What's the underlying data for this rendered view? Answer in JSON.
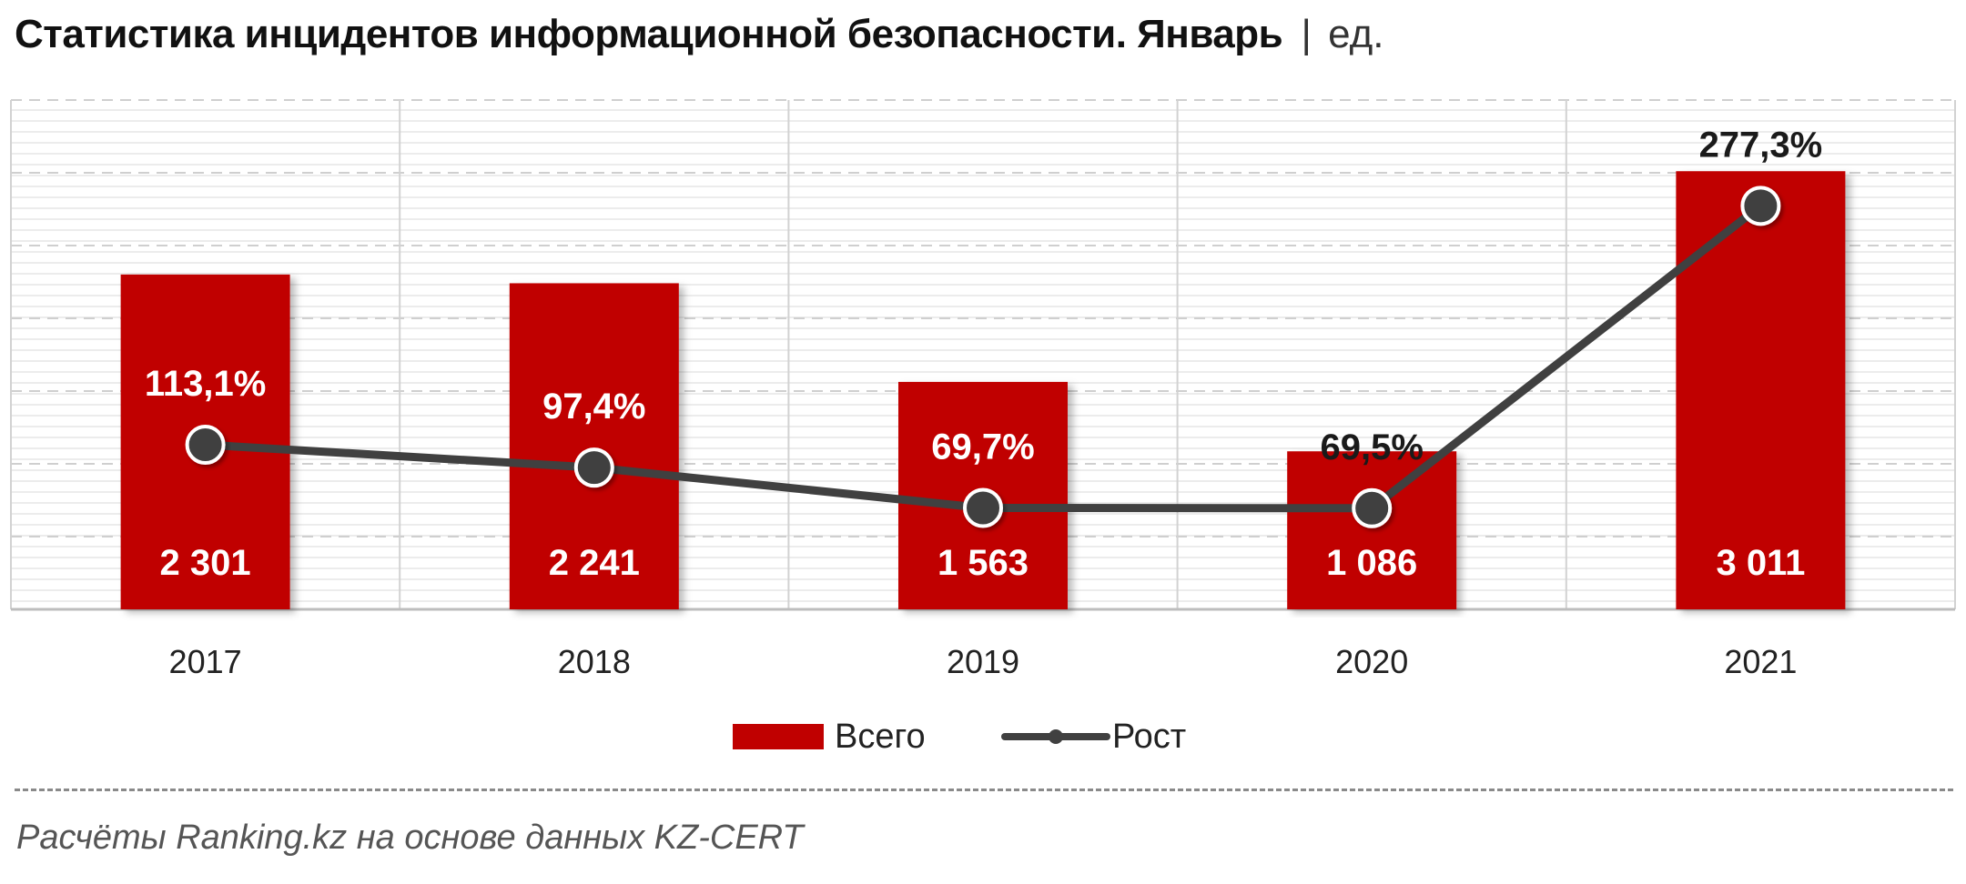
{
  "title": {
    "main": "Статистика  инцидентов информационной безопасности. Январь",
    "separator": "|",
    "unit": "ед."
  },
  "chart_data": {
    "type": "bar",
    "categories": [
      "2017",
      "2018",
      "2019",
      "2020",
      "2021"
    ],
    "series": [
      {
        "name": "Всего",
        "type": "bar",
        "values": [
          2301,
          2241,
          1563,
          1086,
          3011
        ],
        "labels": [
          "2 301",
          "2 241",
          "1 563",
          "1 086",
          "3 011"
        ],
        "color": "#c00000"
      },
      {
        "name": "Рост",
        "type": "line",
        "values": [
          113.1,
          97.4,
          69.7,
          69.5,
          277.3
        ],
        "labels": [
          "113,1%",
          "97,4%",
          "69,7%",
          "69,5%",
          "277,3%"
        ],
        "color": "#404040"
      }
    ],
    "y_axis_bars": {
      "min": 0,
      "max": 3500
    },
    "y_axis_line": {
      "min": 0,
      "max": 350
    },
    "grid": true,
    "legend_position": "bottom"
  },
  "legend": {
    "bar_label": "Всего",
    "line_label": "Рост"
  },
  "source": "Расчёты Ranking.kz на основе данных  KZ-CERT"
}
